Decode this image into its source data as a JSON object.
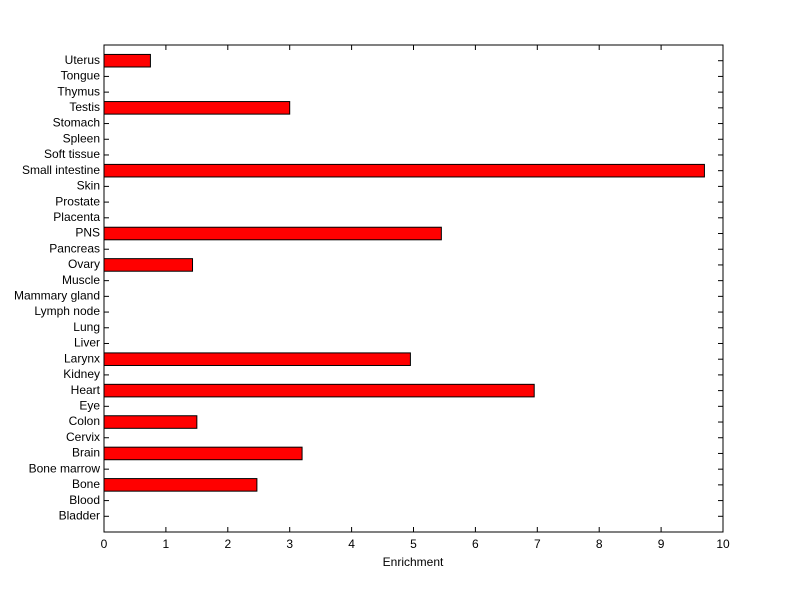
{
  "chart_data": {
    "type": "barh",
    "xlabel": "Enrichment",
    "categories": [
      "Bladder",
      "Blood",
      "Bone",
      "Bone marrow",
      "Brain",
      "Cervix",
      "Colon",
      "Eye",
      "Heart",
      "Kidney",
      "Larynx",
      "Liver",
      "Lung",
      "Lymph node",
      "Mammary gland",
      "Muscle",
      "Ovary",
      "Pancreas",
      "PNS",
      "Placenta",
      "Prostate",
      "Skin",
      "Small intestine",
      "Soft tissue",
      "Spleen",
      "Stomach",
      "Testis",
      "Thymus",
      "Tongue",
      "Uterus"
    ],
    "values": [
      0,
      0,
      2.47,
      0,
      3.2,
      0,
      1.5,
      0,
      6.95,
      0,
      4.95,
      0,
      0,
      0,
      0,
      0,
      1.43,
      0,
      5.45,
      0,
      0,
      0,
      9.7,
      0,
      0,
      0,
      3.0,
      0,
      0,
      0.75
    ],
    "color": "#ff0000",
    "xlim": [
      0,
      10
    ],
    "xticks": [
      0,
      1,
      2,
      3,
      4,
      5,
      6,
      7,
      8,
      9,
      10
    ]
  }
}
